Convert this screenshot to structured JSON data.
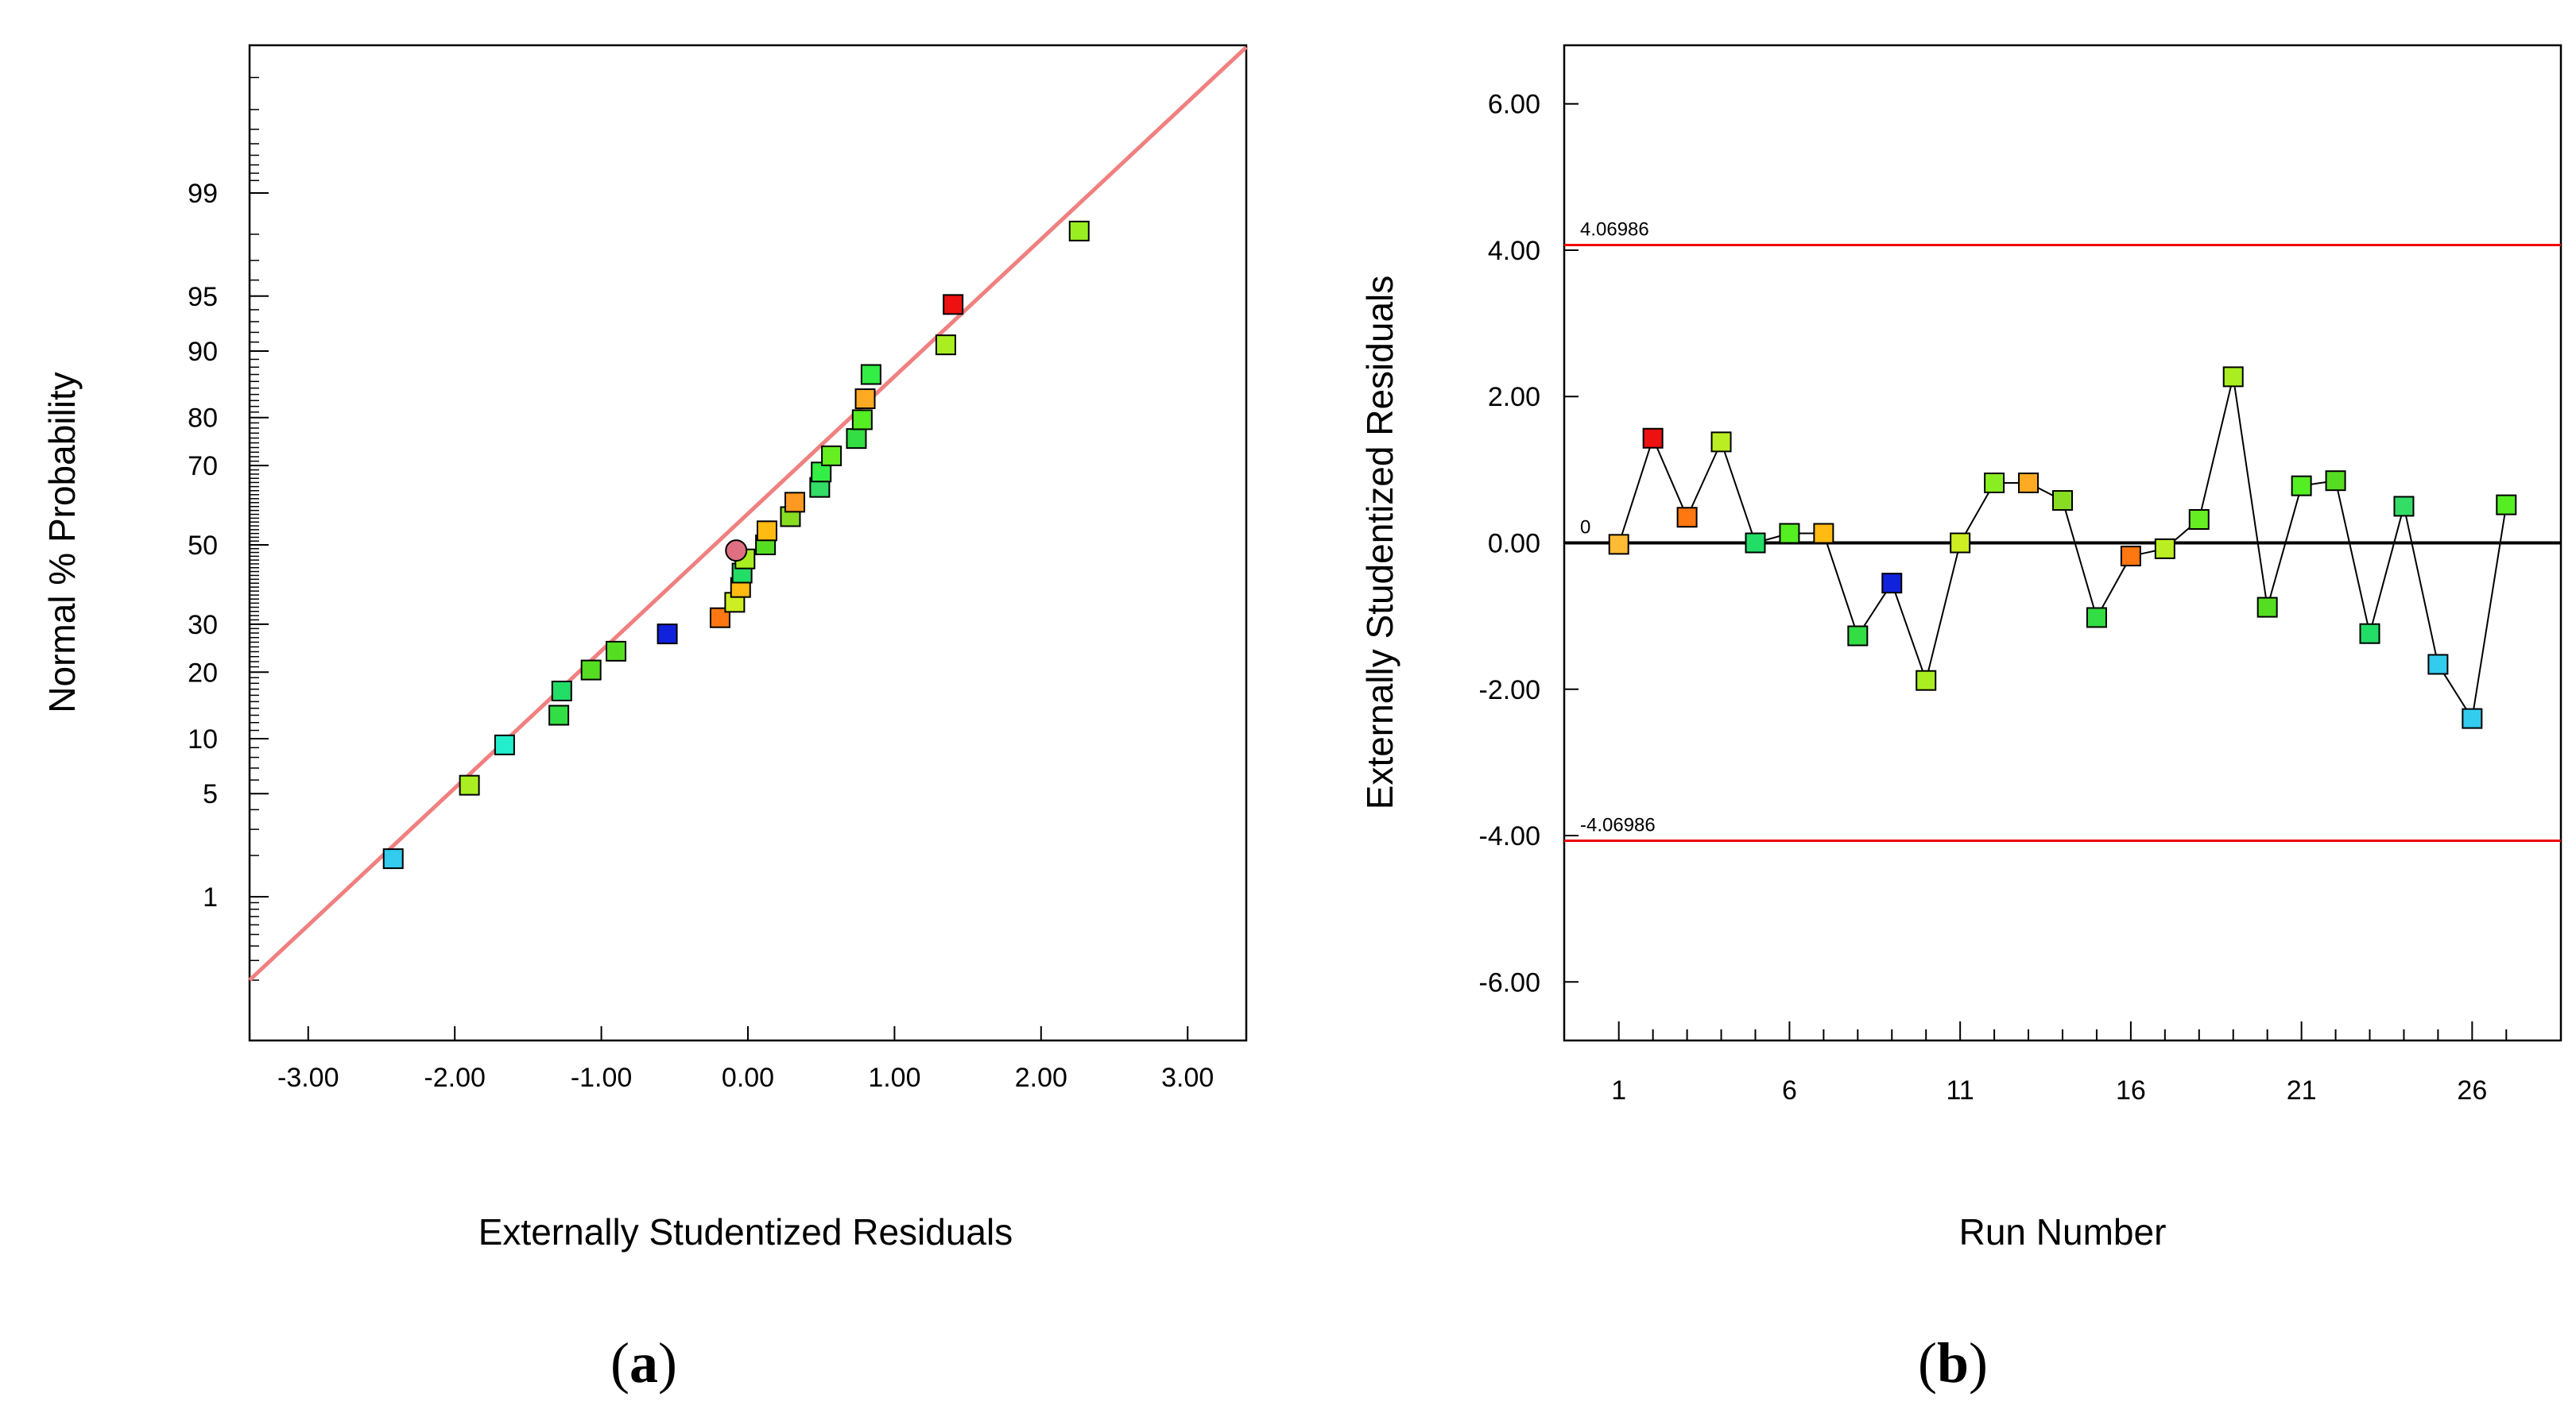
{
  "chart_data": [
    {
      "type": "scatter",
      "panel_label": "a",
      "xlabel": "Externally Studentized Residuals",
      "ylabel": "Normal % Probability",
      "xlim": [
        -3.4,
        3.4
      ],
      "x_ticks": [
        -3,
        -2,
        -1,
        0,
        1,
        2,
        3
      ],
      "x_tick_labels": [
        "-3.00",
        "-2.00",
        "-1.00",
        "0.00",
        "1.00",
        "2.00",
        "3.00"
      ],
      "y_ticks": [
        1,
        5,
        10,
        20,
        30,
        50,
        70,
        80,
        90,
        95,
        99
      ],
      "y_tick_labels": [
        "1",
        "5",
        "10",
        "20",
        "30",
        "50",
        "70",
        "80",
        "90",
        "95",
        "99"
      ],
      "reference_line": {
        "color": "#f08080",
        "from": [
          -3.4,
          0.2
        ],
        "to": [
          3.4,
          99.95
        ]
      },
      "points": [
        {
          "x": -2.42,
          "p": 1.9,
          "color": "#33ccee"
        },
        {
          "x": -1.9,
          "p": 5.6,
          "color": "#aaee22"
        },
        {
          "x": -1.66,
          "p": 9.3,
          "color": "#22eecc"
        },
        {
          "x": -1.29,
          "p": 13.0,
          "color": "#33dd44"
        },
        {
          "x": -1.27,
          "p": 16.7,
          "color": "#22dd66"
        },
        {
          "x": -1.07,
          "p": 20.4,
          "color": "#55dd22"
        },
        {
          "x": -0.9,
          "p": 24.1,
          "color": "#55dd22"
        },
        {
          "x": -0.55,
          "p": 27.8,
          "color": "#1122dd",
          "label_hint": "blue"
        },
        {
          "x": -0.19,
          "p": 31.5,
          "color": "#ff7711"
        },
        {
          "x": -0.09,
          "p": 35.2,
          "color": "#ccee22"
        },
        {
          "x": -0.05,
          "p": 38.9,
          "color": "#ffbb11"
        },
        {
          "x": -0.04,
          "p": 42.6,
          "color": "#22dd66"
        },
        {
          "x": -0.02,
          "p": 46.3,
          "color": "#aaee22"
        },
        {
          "x": 0.12,
          "p": 50.0,
          "color": "#55dd22"
        },
        {
          "x": 0.13,
          "p": 53.7,
          "color": "#ffbb11"
        },
        {
          "x": 0.29,
          "p": 57.4,
          "color": "#88dd22"
        },
        {
          "x": 0.32,
          "p": 61.1,
          "color": "#ff9922"
        },
        {
          "x": 0.49,
          "p": 64.8,
          "color": "#33dd66"
        },
        {
          "x": 0.5,
          "p": 68.5,
          "color": "#33ee44"
        },
        {
          "x": 0.57,
          "p": 72.2,
          "color": "#66ee22"
        },
        {
          "x": 0.74,
          "p": 75.9,
          "color": "#33dd44"
        },
        {
          "x": 0.78,
          "p": 79.6,
          "color": "#55ee22"
        },
        {
          "x": 0.8,
          "p": 83.3,
          "color": "#ffaa22"
        },
        {
          "x": 0.84,
          "p": 87.0,
          "color": "#33ee44"
        },
        {
          "x": 1.35,
          "p": 90.7,
          "color": "#aaee22"
        },
        {
          "x": 1.4,
          "p": 94.4,
          "color": "#ee1111"
        },
        {
          "x": 2.26,
          "p": 98.1,
          "color": "#99ee22"
        }
      ],
      "marker_circle": {
        "x": -0.08,
        "p": 48.5,
        "color": "#e07080"
      }
    },
    {
      "type": "line",
      "panel_label": "b",
      "xlabel": "Run Number",
      "ylabel": "Externally Studentized Residuals",
      "xlim": [
        -0.6,
        28.6
      ],
      "ylim": [
        -6.8,
        6.8
      ],
      "x_ticks": [
        1,
        6,
        11,
        16,
        21,
        26
      ],
      "x_tick_labels": [
        "1",
        "6",
        "11",
        "16",
        "21",
        "26"
      ],
      "y_ticks": [
        -6,
        -4,
        -2,
        0,
        2,
        4,
        6
      ],
      "y_tick_labels": [
        "-6.00",
        "-4.00",
        "-2.00",
        "0.00",
        "2.00",
        "4.00",
        "6.00"
      ],
      "limits": {
        "upper": 4.06986,
        "lower": -4.06986,
        "color": "#ee0000"
      },
      "limit_labels": {
        "upper": "4.06986",
        "lower": "-4.06986",
        "zero": "0"
      },
      "x": [
        1,
        2,
        3,
        4,
        5,
        6,
        7,
        8,
        9,
        10,
        11,
        12,
        13,
        14,
        15,
        16,
        17,
        18,
        19,
        20,
        21,
        22,
        23,
        24,
        25,
        26,
        27
      ],
      "values": [
        -0.02,
        1.43,
        0.35,
        1.38,
        0.0,
        0.13,
        0.13,
        -1.27,
        -0.55,
        -1.88,
        0.0,
        0.82,
        0.82,
        0.58,
        -1.02,
        -0.18,
        -0.08,
        0.32,
        2.27,
        -0.88,
        0.78,
        0.85,
        -1.24,
        0.5,
        -1.66,
        -2.4,
        0.52
      ],
      "colors": [
        "#ffbb33",
        "#ee1111",
        "#ff7711",
        "#bbee22",
        "#22dd66",
        "#55ee22",
        "#ffbb11",
        "#33dd44",
        "#1122dd",
        "#aaee22",
        "#ccee22",
        "#88ee22",
        "#ffaa22",
        "#88dd22",
        "#33dd44",
        "#ff7711",
        "#bbee22",
        "#66ee22",
        "#aaee22",
        "#55dd22",
        "#55ee22",
        "#55dd22",
        "#22dd66",
        "#33dd66",
        "#33ccee",
        "#33ccee",
        "#55ee22"
      ]
    }
  ]
}
